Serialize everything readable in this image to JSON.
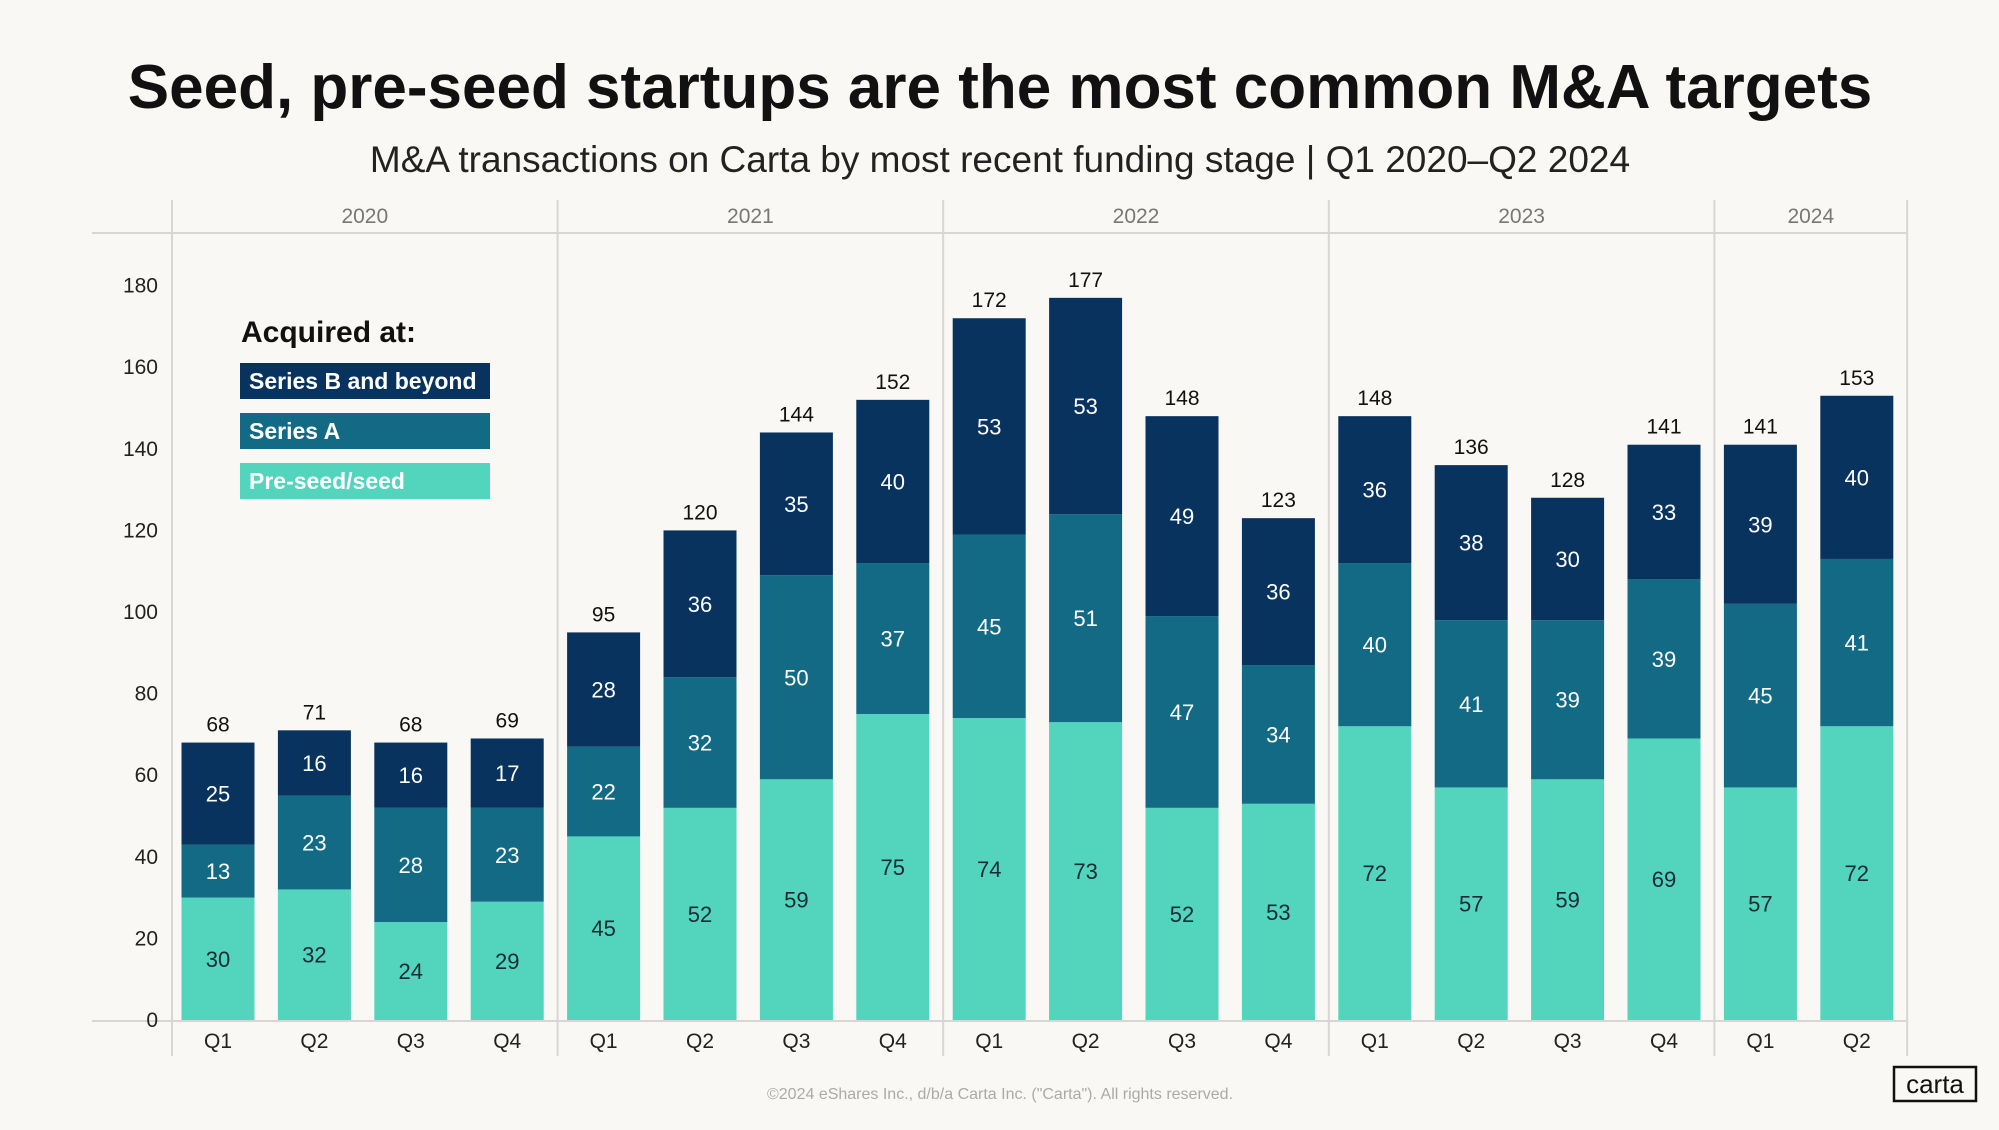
{
  "title": "Seed, pre-seed startups are the most common M&A targets",
  "subtitle": "M&A transactions on Carta by most recent funding stage  | Q1 2020–Q2 2024",
  "footer": "©2024 eShares Inc., d/b/a Carta Inc. (\"Carta\"). All rights reserved.",
  "logo": "carta",
  "colors": {
    "background": "#faf8f4",
    "series_b": "#08335e",
    "series_a": "#136a85",
    "seed": "#52d4bd"
  },
  "chart_data": {
    "type": "bar",
    "stacked": true,
    "legend_title": "Acquired at:",
    "legend_placement": "top-left",
    "ylim": [
      0,
      180
    ],
    "yticks": [
      0,
      20,
      40,
      60,
      80,
      100,
      120,
      140,
      160,
      180
    ],
    "years": [
      {
        "label": "2020",
        "quarters": 4
      },
      {
        "label": "2021",
        "quarters": 4
      },
      {
        "label": "2022",
        "quarters": 4
      },
      {
        "label": "2023",
        "quarters": 4
      },
      {
        "label": "2024",
        "quarters": 2
      }
    ],
    "categories": [
      "Q1",
      "Q2",
      "Q3",
      "Q4",
      "Q1",
      "Q2",
      "Q3",
      "Q4",
      "Q1",
      "Q2",
      "Q3",
      "Q4",
      "Q1",
      "Q2",
      "Q3",
      "Q4",
      "Q1",
      "Q2"
    ],
    "series": [
      {
        "name": "Pre-seed/seed",
        "color": "#52d4bd",
        "values": [
          30,
          32,
          24,
          29,
          45,
          52,
          59,
          75,
          74,
          73,
          52,
          53,
          72,
          57,
          59,
          69,
          57,
          72
        ]
      },
      {
        "name": "Series A",
        "color": "#136a85",
        "values": [
          13,
          23,
          28,
          23,
          22,
          32,
          50,
          37,
          45,
          51,
          47,
          34,
          40,
          41,
          39,
          39,
          45,
          41
        ]
      },
      {
        "name": "Series B and beyond",
        "color": "#08335e",
        "values": [
          25,
          16,
          16,
          17,
          28,
          36,
          35,
          40,
          53,
          53,
          49,
          36,
          36,
          38,
          30,
          33,
          39,
          40
        ]
      }
    ],
    "totals": [
      68,
      71,
      68,
      69,
      95,
      120,
      144,
      152,
      172,
      177,
      148,
      123,
      148,
      136,
      128,
      141,
      141,
      153
    ],
    "legend_order": [
      "Series B and beyond",
      "Series A",
      "Pre-seed/seed"
    ]
  }
}
